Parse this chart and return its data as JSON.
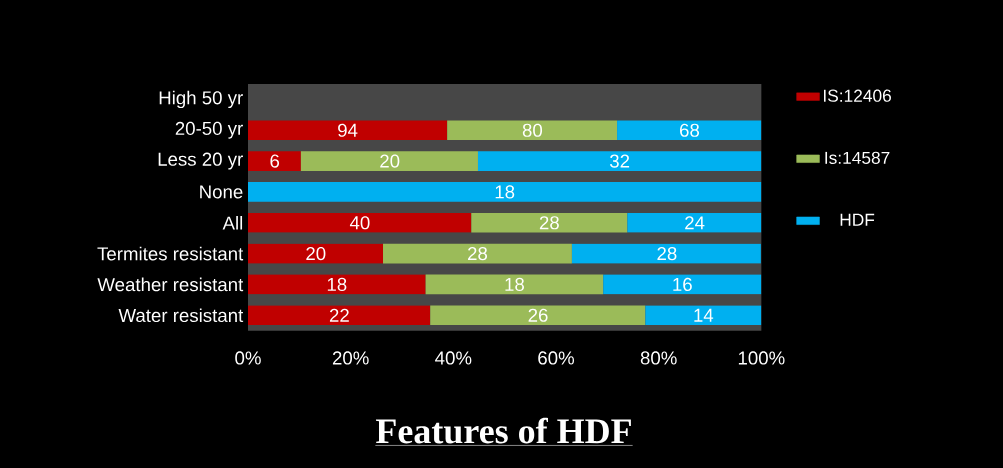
{
  "chart_data": {
    "type": "bar",
    "orientation": "horizontal",
    "stacked": true,
    "title": "Features of HDF",
    "categories": [
      "High 50 yr",
      "20-50 yr",
      "Less 20 yr",
      "None",
      "All",
      "Termites resistant",
      "Weather resistant",
      "Water resistant"
    ],
    "series": [
      {
        "name": "IS:12406",
        "color": "#c00000",
        "values": [
          null,
          38.8,
          10.3,
          null,
          43.5,
          26.3,
          34.6,
          35.5
        ]
      },
      {
        "name": "Is:14587",
        "color": "#9bbb59",
        "values": [
          null,
          33.1,
          34.5,
          null,
          30.4,
          36.8,
          34.6,
          41.9
        ]
      },
      {
        "name": "HDF",
        "color": "#00b0f0",
        "values": [
          null,
          28.1,
          55.2,
          100,
          26.1,
          36.8,
          30.8,
          22.6
        ]
      }
    ],
    "annotations": [
      {
        "text": "94",
        "x": 19.4,
        "y": "20-50 yr"
      },
      {
        "text": "80",
        "x": 55.4,
        "y": "20-50 yr"
      },
      {
        "text": "68",
        "x": 86,
        "y": "20-50 yr"
      },
      {
        "text": "6",
        "x": 5.2,
        "y": "Less 20 yr"
      },
      {
        "text": "20",
        "x": 27.6,
        "y": "Less 20 yr"
      },
      {
        "text": "32",
        "x": 72.4,
        "y": "Less 20 yr"
      },
      {
        "text": "18",
        "x": 50,
        "y": "None"
      },
      {
        "text": "40",
        "x": 21.8,
        "y": "All"
      },
      {
        "text": "28",
        "x": 58.7,
        "y": "All"
      },
      {
        "text": "24",
        "x": 87,
        "y": "All"
      },
      {
        "text": "20",
        "x": 13.2,
        "y": "Termites resistant"
      },
      {
        "text": "28",
        "x": 44.7,
        "y": "Termites resistant"
      },
      {
        "text": "28",
        "x": 81.6,
        "y": "Termites resistant"
      },
      {
        "text": "18",
        "x": 17.3,
        "y": "Weather resistant"
      },
      {
        "text": "18",
        "x": 51.9,
        "y": "Weather resistant"
      },
      {
        "text": "16",
        "x": 84.6,
        "y": "Weather resistant"
      },
      {
        "text": "22",
        "x": 17.8,
        "y": "Water resistant"
      },
      {
        "text": "26",
        "x": 56.5,
        "y": "Water resistant"
      },
      {
        "text": "14",
        "x": 88.7,
        "y": "Water resistant"
      }
    ],
    "xlim": [
      0,
      100
    ],
    "xticks": [
      {
        "value": 0,
        "label": "0%"
      },
      {
        "value": 20,
        "label": "20%"
      },
      {
        "value": 40,
        "label": "40%"
      },
      {
        "value": 60,
        "label": "60%"
      },
      {
        "value": 80,
        "label": "80%"
      },
      {
        "value": 100,
        "label": "100%"
      }
    ],
    "legend": "right"
  }
}
